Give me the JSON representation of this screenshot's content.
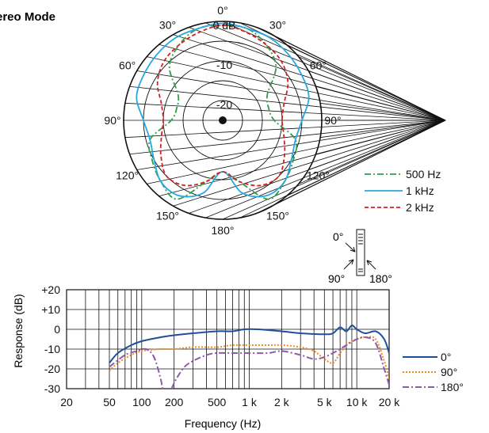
{
  "chart_data": [
    {
      "type": "polar",
      "title": "Stereo Mode",
      "angle_labels": [
        {
          "deg": 0,
          "text": "0°"
        },
        {
          "deg": 30,
          "text": "30°"
        },
        {
          "deg": 330,
          "text": "30°"
        },
        {
          "deg": 60,
          "text": "60°"
        },
        {
          "deg": 300,
          "text": "60°"
        },
        {
          "deg": 90,
          "text": "90°"
        },
        {
          "deg": 270,
          "text": "90°"
        },
        {
          "deg": 120,
          "text": "120°"
        },
        {
          "deg": 240,
          "text": "120°"
        },
        {
          "deg": 150,
          "text": "150°"
        },
        {
          "deg": 210,
          "text": "150°"
        },
        {
          "deg": 180,
          "text": "180°"
        }
      ],
      "ring_labels": [
        {
          "db": 0,
          "text": "0 dB"
        },
        {
          "db": -10,
          "text": "-10"
        },
        {
          "db": -20,
          "text": "-20"
        }
      ],
      "rlim": [
        -25,
        0
      ],
      "series": [
        {
          "name": "500 Hz",
          "color": "#2e9e4a",
          "dash": "dashdot",
          "angles": [
            0,
            15,
            30,
            45,
            60,
            75,
            90,
            105,
            120,
            135,
            150,
            165,
            180,
            195,
            210,
            225,
            240,
            255,
            270,
            285,
            300,
            315,
            330,
            345
          ],
          "db": [
            -1,
            -1,
            -3,
            -6,
            -12,
            -13,
            -12,
            -6,
            -4.5,
            -3,
            -2,
            -9,
            -12,
            -9,
            -2,
            -3,
            -4.5,
            -6,
            -12,
            -13,
            -12,
            -6,
            -3,
            -1
          ]
        },
        {
          "name": "1 kHz",
          "color": "#27a8e0",
          "dash": "solid",
          "angles": [
            0,
            15,
            30,
            45,
            60,
            75,
            90,
            105,
            120,
            135,
            150,
            165,
            180,
            195,
            210,
            225,
            240,
            255,
            270,
            285,
            300,
            315,
            330,
            345
          ],
          "db": [
            -0.5,
            -1,
            -1,
            -1.5,
            -2,
            -2.5,
            -5,
            -6,
            -5,
            -3,
            -3,
            -6,
            -12,
            -6,
            -3,
            -3,
            -5,
            -6,
            -5,
            -2.5,
            -2,
            -1.5,
            -1,
            -1
          ]
        },
        {
          "name": "2 kHz",
          "color": "#d42020",
          "dash": "dashed",
          "angles": [
            0,
            15,
            30,
            45,
            60,
            75,
            90,
            105,
            120,
            135,
            150,
            165,
            180,
            195,
            210,
            225,
            240,
            255,
            270,
            285,
            300,
            315,
            330,
            345
          ],
          "db": [
            -1,
            -2,
            -3,
            -4,
            -6,
            -9,
            -10,
            -9,
            -7,
            -5,
            -6,
            -9,
            -12,
            -9,
            -6,
            -5,
            -7,
            -9,
            -10,
            -9,
            -6,
            -4,
            -3,
            -2
          ]
        }
      ],
      "directions": {
        "front": "0°",
        "side": "90°",
        "rear": "180°"
      }
    },
    {
      "type": "line",
      "xlabel": "Frequency (Hz)",
      "ylabel": "Response (dB)",
      "x_scale": "log",
      "xlim": [
        20,
        20000
      ],
      "ylim": [
        -30,
        20
      ],
      "x_ticks": [
        20,
        50,
        100,
        200,
        500,
        1000,
        2000,
        5000,
        10000,
        20000
      ],
      "x_tick_labels": [
        "20",
        "50",
        "100",
        "200",
        "500",
        "1 k",
        "2 k",
        "5 k",
        "10 k",
        "20 k"
      ],
      "y_ticks": [
        20,
        10,
        0,
        -10,
        -20,
        -30
      ],
      "y_tick_labels": [
        "+20",
        "+10",
        "0",
        "-10",
        "-20",
        "-30"
      ],
      "grid": true,
      "series": [
        {
          "name": "0°",
          "color": "#1f4e9b",
          "dash": "solid",
          "x": [
            50,
            60,
            80,
            100,
            150,
            200,
            300,
            500,
            700,
            900,
            1200,
            2000,
            3000,
            5000,
            6000,
            7000,
            8000,
            9000,
            10000,
            12000,
            15000,
            18000,
            20000
          ],
          "y": [
            -17,
            -12,
            -8,
            -6,
            -4,
            -3,
            -2,
            -1,
            -1,
            0,
            0,
            -1,
            -2,
            -2.5,
            -2,
            1,
            -1,
            2,
            0,
            -2,
            -1,
            -5,
            -12
          ]
        },
        {
          "name": "90°",
          "color": "#f08a24",
          "dash": "dotted",
          "x": [
            50,
            60,
            80,
            100,
            150,
            200,
            300,
            500,
            700,
            1000,
            1500,
            2000,
            3000,
            4000,
            5000,
            6000,
            7000,
            8000,
            9000,
            10000,
            12000,
            15000,
            18000,
            20000
          ],
          "y": [
            -21,
            -17,
            -13,
            -11,
            -10,
            -10,
            -9,
            -9,
            -8,
            -8,
            -8,
            -8,
            -9,
            -11,
            -15,
            -17,
            -12,
            -8,
            -6,
            -5,
            -4,
            -5,
            -16,
            -25
          ]
        },
        {
          "name": "180°",
          "color": "#8e5ba8",
          "dash": "dashdot",
          "x": [
            50,
            70,
            90,
            110,
            130,
            150,
            160,
            180,
            210,
            250,
            300,
            400,
            500,
            700,
            1000,
            1500,
            2000,
            3000,
            4000,
            5000,
            6000,
            7000,
            8000,
            10000,
            12000,
            15000,
            18000,
            20000
          ],
          "y": [
            -19,
            -13,
            -11,
            -10,
            -14,
            -25,
            -32,
            -32,
            -25,
            -19,
            -16,
            -13,
            -12,
            -12,
            -12,
            -12,
            -11,
            -13,
            -15,
            -14,
            -12,
            -10,
            -8,
            -5,
            -4,
            -7,
            -20,
            -28
          ]
        }
      ]
    }
  ]
}
